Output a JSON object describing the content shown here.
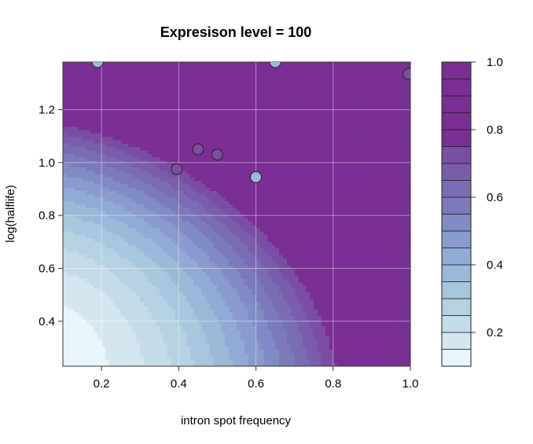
{
  "chart_data": {
    "type": "heatmap",
    "subtype": "filled-contour",
    "title": "Expresison level = 100",
    "xlabel": "intron spot frequency",
    "ylabel": "log(halflife)",
    "xlim": [
      0.1,
      1.0
    ],
    "ylim": [
      0.23,
      1.38
    ],
    "xticks": [
      0.2,
      0.4,
      0.6,
      0.8,
      1.0
    ],
    "xtick_labels": [
      "0.2",
      "0.4",
      "0.6",
      "0.8",
      "1.0"
    ],
    "yticks": [
      0.4,
      0.6,
      0.8,
      1.0,
      1.2
    ],
    "ytick_labels": [
      "0.4",
      "0.6",
      "0.8",
      "1.0",
      "1.2"
    ],
    "grid": true,
    "colorbar": {
      "range": [
        0.1,
        1.0
      ],
      "levels": [
        0.1,
        0.15,
        0.2,
        0.25,
        0.3,
        0.35,
        0.4,
        0.45,
        0.5,
        0.55,
        0.6,
        0.65,
        0.7,
        0.75,
        0.8,
        0.85,
        0.9,
        0.95,
        1.0
      ],
      "ticks": [
        0.2,
        0.4,
        0.6,
        0.8,
        1.0
      ],
      "tick_labels": [
        "0.2",
        "0.4",
        "0.6",
        "0.8",
        "1.0"
      ],
      "colors": [
        "#e8f5fa",
        "#d4e7f1",
        "#c4dcea",
        "#b5d2e3",
        "#a7c7de",
        "#9bbad9",
        "#90abd4",
        "#889bcc",
        "#818cc4",
        "#7b7bbb",
        "#7a6cb3",
        "#7a5daa",
        "#7a4ea2",
        "#792f94",
        "#792f94",
        "#792f94",
        "#792f94",
        "#792f94"
      ]
    },
    "points": [
      {
        "x": 0.19,
        "y": 1.38,
        "value": 0.38
      },
      {
        "x": 0.395,
        "y": 0.975,
        "value": 0.72
      },
      {
        "x": 0.45,
        "y": 1.05,
        "value": 0.72
      },
      {
        "x": 0.5,
        "y": 1.03,
        "value": 0.72
      },
      {
        "x": 0.6,
        "y": 0.945,
        "value": 0.38
      },
      {
        "x": 0.65,
        "y": 1.38,
        "value": 0.38
      },
      {
        "x": 0.995,
        "y": 1.335,
        "value": 0.72
      }
    ]
  }
}
